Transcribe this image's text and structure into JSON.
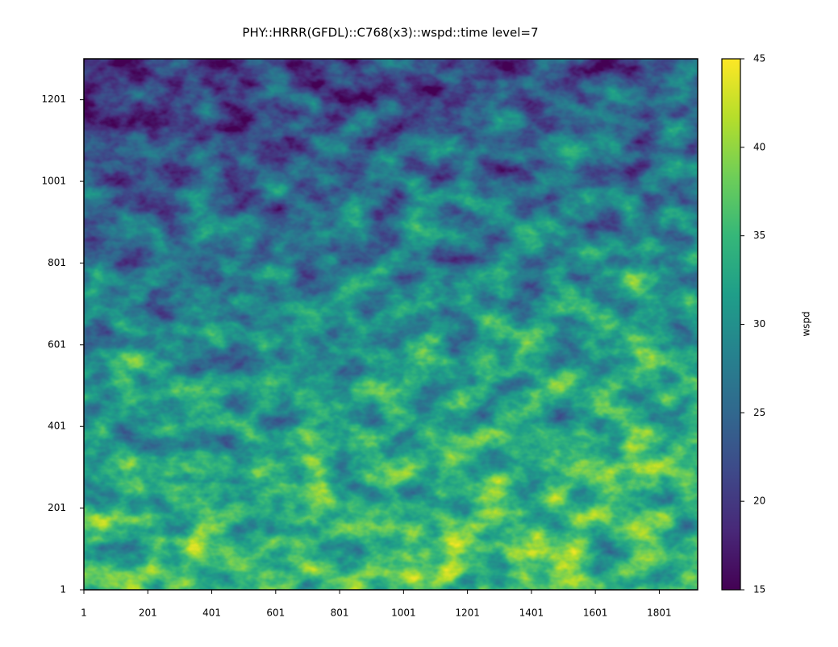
{
  "chart_data": {
    "type": "heatmap",
    "title": "PHY::HRRR(GFDL)::C768(x3)::wspd::time level=7",
    "xlim": [
      1,
      1921
    ],
    "xticks": [
      1,
      201,
      401,
      601,
      801,
      1001,
      1201,
      1401,
      1601,
      1801
    ],
    "ylim": [
      1,
      1301
    ],
    "yticks": [
      1,
      201,
      401,
      601,
      801,
      1001,
      1201
    ],
    "colormap": "viridis",
    "colorbar_label": "wspd",
    "clim": [
      15,
      45
    ],
    "colorbar_ticks": [
      15,
      20,
      25,
      30,
      35,
      40,
      45
    ]
  }
}
